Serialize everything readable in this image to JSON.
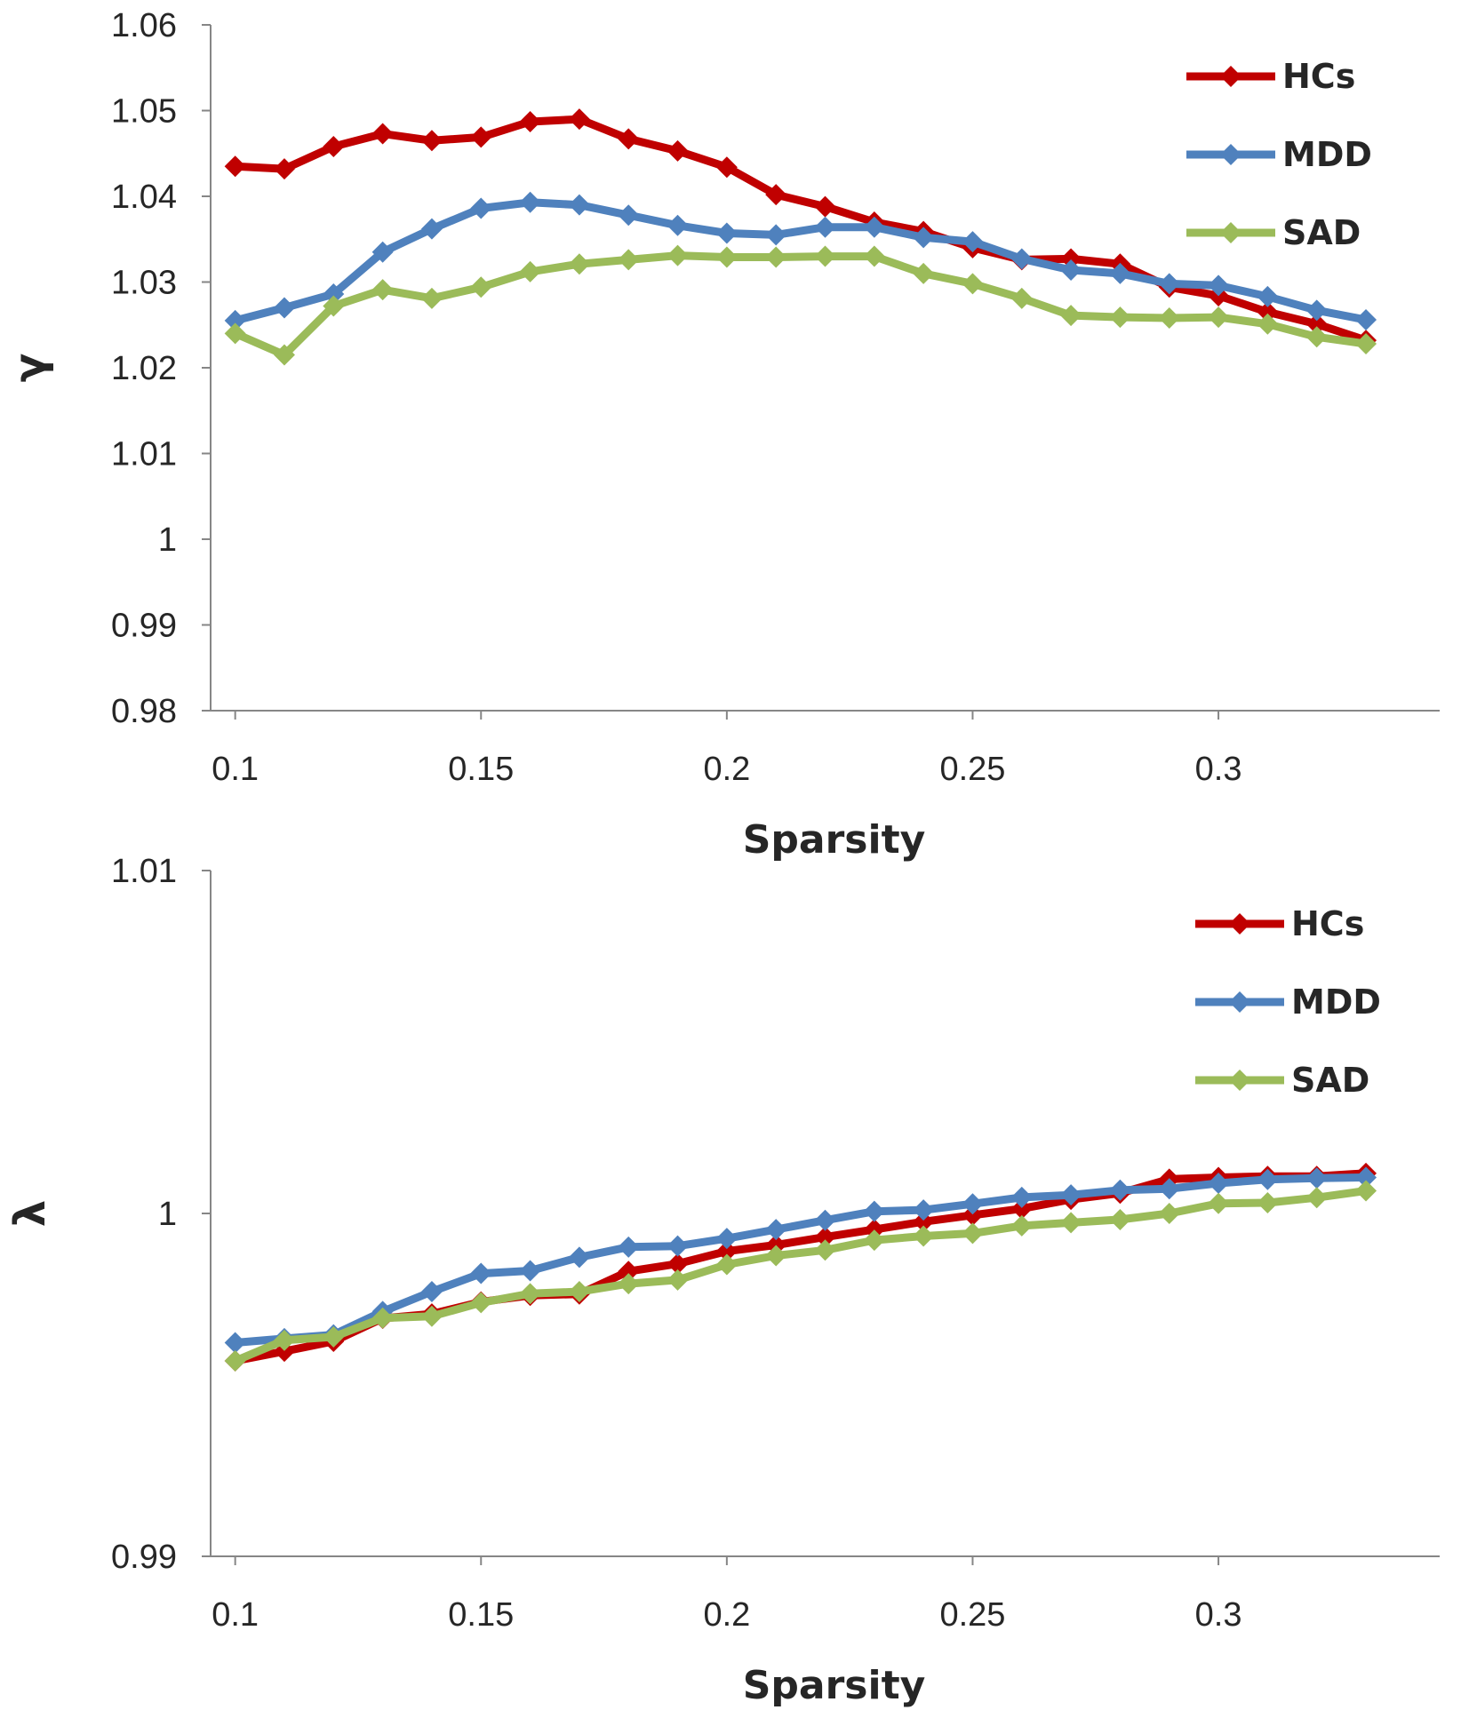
{
  "chart_data": [
    {
      "type": "line",
      "title": "",
      "xlabel": "Sparsity",
      "ylabel": "γ",
      "xlim": [
        0.095,
        0.345
      ],
      "ylim": [
        0.98,
        1.06
      ],
      "xticks": [
        "0.1",
        "0.15",
        "0.2",
        "0.25",
        "0.3"
      ],
      "yticks": [
        "0.98",
        "0.99",
        "1",
        "1.01",
        "1.02",
        "1.03",
        "1.04",
        "1.05",
        "1.06"
      ],
      "legend_position": "top-right",
      "x": [
        0.1,
        0.11,
        0.12,
        0.13,
        0.14,
        0.15,
        0.16,
        0.17,
        0.18,
        0.19,
        0.2,
        0.21,
        0.22,
        0.23,
        0.24,
        0.25,
        0.26,
        0.27,
        0.28,
        0.29,
        0.3,
        0.31,
        0.32,
        0.33
      ],
      "series": [
        {
          "name": "HCs",
          "color": "#c00000",
          "values": [
            1.0435,
            1.0432,
            1.0458,
            1.0473,
            1.0465,
            1.0469,
            1.0487,
            1.049,
            1.0467,
            1.0453,
            1.0434,
            1.0402,
            1.0388,
            1.037,
            1.0359,
            1.034,
            1.0326,
            1.0327,
            1.0321,
            1.0294,
            1.0284,
            1.0265,
            1.0251,
            1.0232
          ]
        },
        {
          "name": "MDD",
          "color": "#4f81bd",
          "values": [
            1.0255,
            1.027,
            1.0286,
            1.0335,
            1.0362,
            1.0386,
            1.0393,
            1.039,
            1.0378,
            1.0366,
            1.0357,
            1.0355,
            1.0364,
            1.0364,
            1.0352,
            1.0347,
            1.0327,
            1.0314,
            1.031,
            1.0298,
            1.0296,
            1.0283,
            1.0267,
            1.0256
          ]
        },
        {
          "name": "SAD",
          "color": "#9bbb59",
          "values": [
            1.024,
            1.0215,
            1.0272,
            1.0291,
            1.0281,
            1.0294,
            1.0312,
            1.0321,
            1.0326,
            1.0331,
            1.0329,
            1.0329,
            1.033,
            1.033,
            1.031,
            1.0298,
            1.0281,
            1.0261,
            1.0259,
            1.0258,
            1.0259,
            1.0251,
            1.0236,
            1.0228
          ]
        }
      ]
    },
    {
      "type": "line",
      "title": "",
      "xlabel": "Sparsity",
      "ylabel": "λ",
      "xlim": [
        0.095,
        0.345
      ],
      "ylim": [
        0.99,
        1.01
      ],
      "xticks": [
        "0.1",
        "0.15",
        "0.2",
        "0.25",
        "0.3"
      ],
      "yticks": [
        "0.99",
        "1",
        "1.01"
      ],
      "legend_position": "top-right",
      "x": [
        0.1,
        0.11,
        0.12,
        0.13,
        0.14,
        0.15,
        0.16,
        0.17,
        0.18,
        0.19,
        0.2,
        0.21,
        0.22,
        0.23,
        0.24,
        0.25,
        0.26,
        0.27,
        0.28,
        0.29,
        0.3,
        0.31,
        0.32,
        0.33
      ],
      "series": [
        {
          "name": "HCs",
          "color": "#c00000",
          "values": [
            0.9957,
            0.99598,
            0.99627,
            0.99694,
            0.99707,
            0.99742,
            0.99761,
            0.99765,
            0.99831,
            0.99853,
            0.9989,
            0.99908,
            0.99931,
            0.99953,
            0.99976,
            0.99995,
            1.00014,
            1.00041,
            1.00059,
            1.001,
            1.00105,
            1.00108,
            1.00108,
            1.00117
          ]
        },
        {
          "name": "MDD",
          "color": "#4f81bd",
          "values": [
            0.99623,
            0.99635,
            0.99646,
            0.99714,
            0.99772,
            0.99825,
            0.99833,
            0.99872,
            0.99902,
            0.99905,
            0.99927,
            0.99953,
            0.9998,
            1.00006,
            1.0001,
            1.00028,
            1.00047,
            1.00054,
            1.00068,
            1.00072,
            1.00088,
            1.00099,
            1.00103,
            1.00105
          ]
        },
        {
          "name": "SAD",
          "color": "#9bbb59",
          "values": [
            0.9957,
            0.9963,
            0.9964,
            0.99695,
            0.997,
            0.9974,
            0.99766,
            0.99772,
            0.99795,
            0.99806,
            0.99851,
            0.99877,
            0.99893,
            0.99922,
            0.99934,
            0.99942,
            0.99964,
            0.99973,
            0.99982,
            1.0,
            1.00029,
            1.00031,
            1.00046,
            1.00066
          ]
        }
      ]
    }
  ]
}
